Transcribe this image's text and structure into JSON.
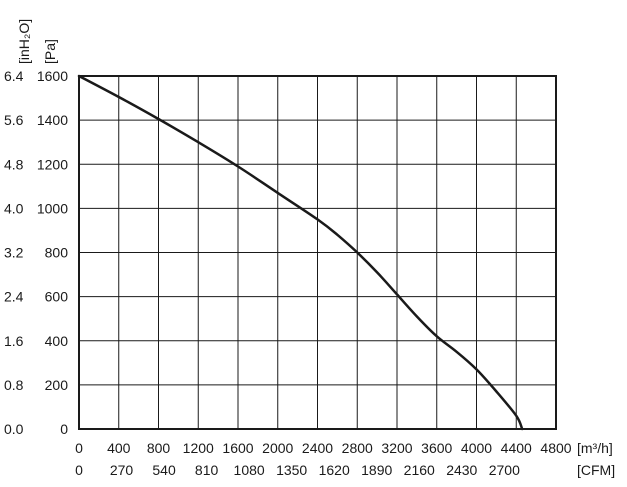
{
  "chart_data": {
    "type": "line",
    "title": "",
    "x_primary": {
      "unit_label": "[m³/h]",
      "ticks": [
        "0",
        "400",
        "800",
        "1200",
        "1600",
        "2000",
        "2400",
        "2800",
        "3200",
        "3600",
        "4000",
        "4400",
        "4800"
      ],
      "range": [
        0,
        4800
      ]
    },
    "x_secondary": {
      "unit_label": "[CFM]",
      "ticks": [
        "0",
        "270",
        "540",
        "810",
        "1080",
        "1350",
        "1620",
        "1890",
        "2160",
        "2430",
        "2700"
      ]
    },
    "y_primary": {
      "unit_label": "[Pa]",
      "ticks": [
        "0",
        "200",
        "400",
        "600",
        "800",
        "1000",
        "1200",
        "1400",
        "1600"
      ],
      "range": [
        0,
        1600
      ]
    },
    "y_secondary": {
      "unit_label": "[inH₂O]",
      "ticks": [
        "0.0",
        "0.8",
        "1.6",
        "2.4",
        "3.2",
        "4.0",
        "4.8",
        "5.6",
        "6.4"
      ]
    },
    "grid": true,
    "series": [
      {
        "x": [
          0,
          400,
          800,
          1200,
          1600,
          2000,
          2400,
          2600,
          2800,
          3000,
          3200,
          3400,
          3600,
          3800,
          4000,
          4200,
          4400,
          4460
        ],
        "y": [
          1600,
          1505,
          1405,
          1300,
          1190,
          1070,
          950,
          880,
          800,
          710,
          610,
          510,
          420,
          350,
          270,
          170,
          60,
          0
        ],
        "color": "#1a1a1a"
      }
    ]
  }
}
